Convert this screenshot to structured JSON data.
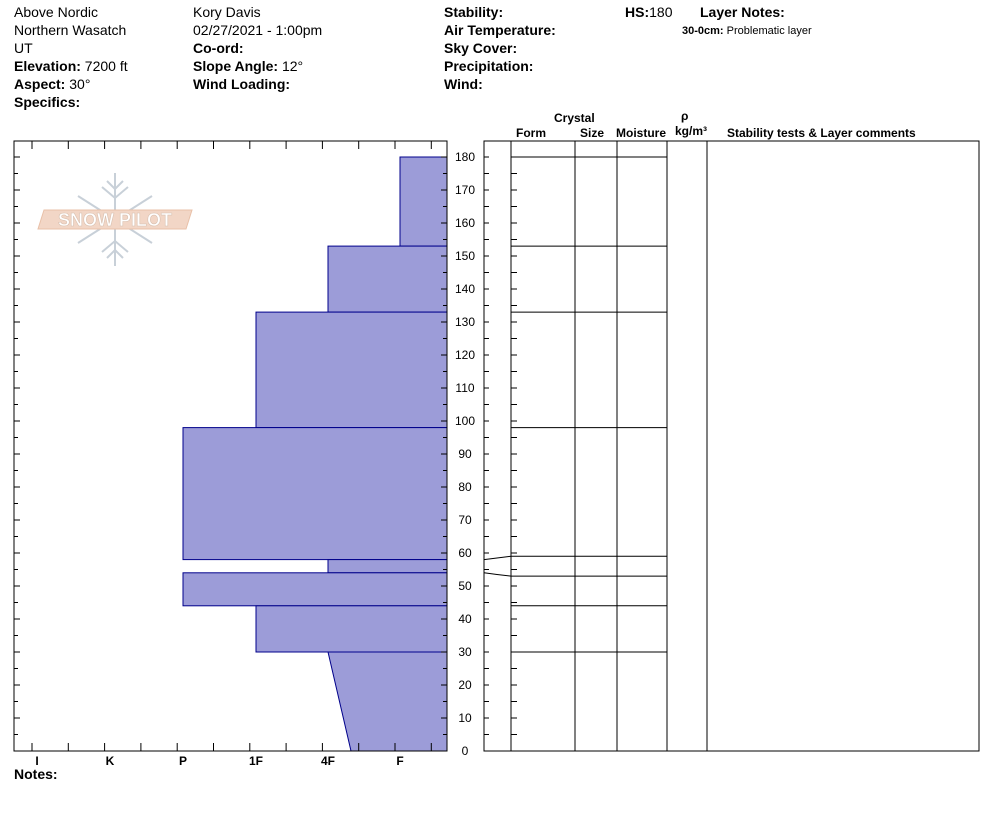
{
  "header": {
    "location": "Above Nordic",
    "range": "Northern Wasatch",
    "state": "UT",
    "elevation_label": "Elevation:",
    "elevation_value": "7200 ft",
    "aspect_label": "Aspect:",
    "aspect_value": "30°",
    "specifics_label": "Specifics:",
    "observer": "Kory Davis",
    "datetime": "02/27/2021 - 1:00pm",
    "coord_label": "Co-ord:",
    "slope_label": "Slope Angle:",
    "slope_value": "12°",
    "wind_loading_label": "Wind Loading:",
    "stability_label": "Stability:",
    "air_temp_label": "Air Temperature:",
    "sky_cover_label": "Sky Cover:",
    "precip_label": "Precipitation:",
    "wind_label": "Wind:",
    "hs_label": "HS:",
    "hs_value": "180",
    "layer_notes_label": "Layer Notes:",
    "layer_note_range": "30-0cm:",
    "layer_note_text": "Problematic layer"
  },
  "columns": {
    "crystal": "Crystal",
    "form": "Form",
    "size": "Size",
    "moisture": "Moisture",
    "rho": "ρ",
    "density_unit": "kg/m³",
    "stability_comments": "Stability tests & Layer comments"
  },
  "notes_label": "Notes:",
  "logo_text": "SNOW PILOT",
  "colors": {
    "layer_fill": "#9c9cd8",
    "layer_stroke": "#00008b"
  },
  "chart_data": {
    "type": "bar",
    "orientation": "horizontal",
    "y_axis": {
      "label": "",
      "range": [
        0,
        185
      ],
      "ticks": [
        0,
        10,
        20,
        30,
        40,
        50,
        60,
        70,
        80,
        90,
        100,
        110,
        120,
        130,
        140,
        150,
        160,
        170,
        180
      ]
    },
    "hardness_scale": [
      "I",
      "K",
      "P",
      "1F",
      "4F",
      "F"
    ],
    "layers": [
      {
        "top": 180,
        "bottom": 153,
        "hardness": "F"
      },
      {
        "top": 153,
        "bottom": 133,
        "hardness": "4F"
      },
      {
        "top": 133,
        "bottom": 98,
        "hardness": "1F"
      },
      {
        "top": 98,
        "bottom": 58,
        "hardness": "P"
      },
      {
        "top": 58,
        "bottom": 54,
        "hardness": "4F"
      },
      {
        "top": 54,
        "bottom": 44,
        "hardness": "P"
      },
      {
        "top": 44,
        "bottom": 30,
        "hardness": "1F"
      },
      {
        "top": 30,
        "bottom": 0,
        "hardness_top": "4F",
        "hardness_bottom": "4F-F"
      }
    ],
    "boundaries_right_panel": [
      180,
      153,
      133,
      98,
      59,
      53,
      44,
      30
    ]
  }
}
